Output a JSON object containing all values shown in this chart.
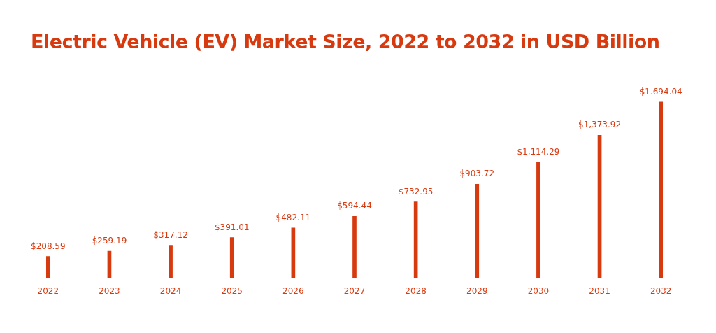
{
  "chart_data": {
    "type": "bar",
    "title": "Electric Vehicle (EV) Market Size, 2022 to 2032 in USD Billion",
    "categories": [
      "2022",
      "2023",
      "2024",
      "2025",
      "2026",
      "2027",
      "2028",
      "2029",
      "2030",
      "2031",
      "2032"
    ],
    "values": [
      208.59,
      259.19,
      317.12,
      391.01,
      482.11,
      594.44,
      732.95,
      903.72,
      1114.29,
      1373.92,
      1694.04
    ],
    "value_labels": [
      "$208.59",
      "$259.19",
      "$317.12",
      "$391.01",
      "$482.11",
      "$594.44",
      "$732.95",
      "$903.72",
      "$1,114.29",
      "$1,373.92",
      "$1.694.04"
    ],
    "color": "#d83a10",
    "grid": false,
    "legend": false
  }
}
